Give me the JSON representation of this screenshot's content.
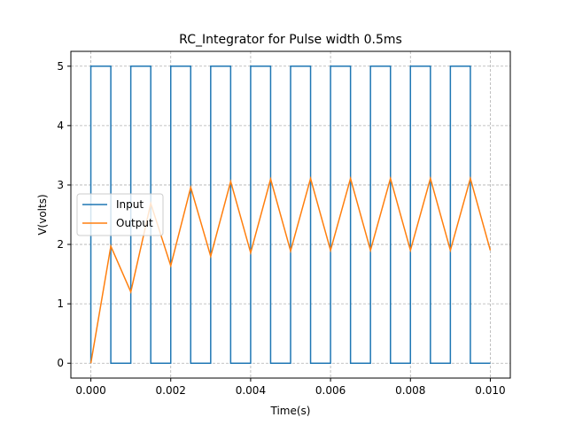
{
  "chart_data": {
    "type": "line",
    "title": "RC_Integrator for Pulse width 0.5ms",
    "xlabel": "Time(s)",
    "ylabel": "V(volts)",
    "xlim": [
      -0.0005,
      0.0105
    ],
    "ylim": [
      -0.25,
      5.25
    ],
    "xticks": [
      0.0,
      0.002,
      0.004,
      0.006,
      0.008,
      0.01
    ],
    "xtick_labels": [
      "0.000",
      "0.002",
      "0.004",
      "0.006",
      "0.008",
      "0.010"
    ],
    "yticks": [
      0,
      1,
      2,
      3,
      4,
      5
    ],
    "ytick_labels": [
      "0",
      "1",
      "2",
      "3",
      "4",
      "5"
    ],
    "grid": true,
    "legend_position": "center-left",
    "series": [
      {
        "name": "Input",
        "color": "#1f77b4",
        "style": "step",
        "x": [
          0.0,
          0.0,
          0.0005,
          0.0005,
          0.001,
          0.001,
          0.0015,
          0.0015,
          0.002,
          0.002,
          0.0025,
          0.0025,
          0.003,
          0.003,
          0.0035,
          0.0035,
          0.004,
          0.004,
          0.0045,
          0.0045,
          0.005,
          0.005,
          0.0055,
          0.0055,
          0.006,
          0.006,
          0.0065,
          0.0065,
          0.007,
          0.007,
          0.0075,
          0.0075,
          0.008,
          0.008,
          0.0085,
          0.0085,
          0.009,
          0.009,
          0.0095,
          0.0095,
          0.01
        ],
        "y": [
          0,
          5,
          5,
          0,
          0,
          5,
          5,
          0,
          0,
          5,
          5,
          0,
          0,
          5,
          5,
          0,
          0,
          5,
          5,
          0,
          0,
          5,
          5,
          0,
          0,
          5,
          5,
          0,
          0,
          5,
          5,
          0,
          0,
          5,
          5,
          0,
          0,
          5,
          5,
          0,
          0
        ]
      },
      {
        "name": "Output",
        "color": "#ff7f0e",
        "style": "line",
        "x": [
          0.0,
          0.0005,
          0.001,
          0.0015,
          0.002,
          0.0025,
          0.003,
          0.0035,
          0.004,
          0.0045,
          0.005,
          0.0055,
          0.006,
          0.0065,
          0.007,
          0.0075,
          0.008,
          0.0085,
          0.009,
          0.0095,
          0.01
        ],
        "y": [
          0.0,
          1.97,
          1.2,
          2.69,
          1.64,
          2.96,
          1.8,
          3.06,
          1.86,
          3.1,
          1.89,
          3.11,
          1.9,
          3.11,
          1.9,
          3.11,
          1.9,
          3.11,
          1.9,
          3.11,
          1.9
        ]
      }
    ]
  }
}
